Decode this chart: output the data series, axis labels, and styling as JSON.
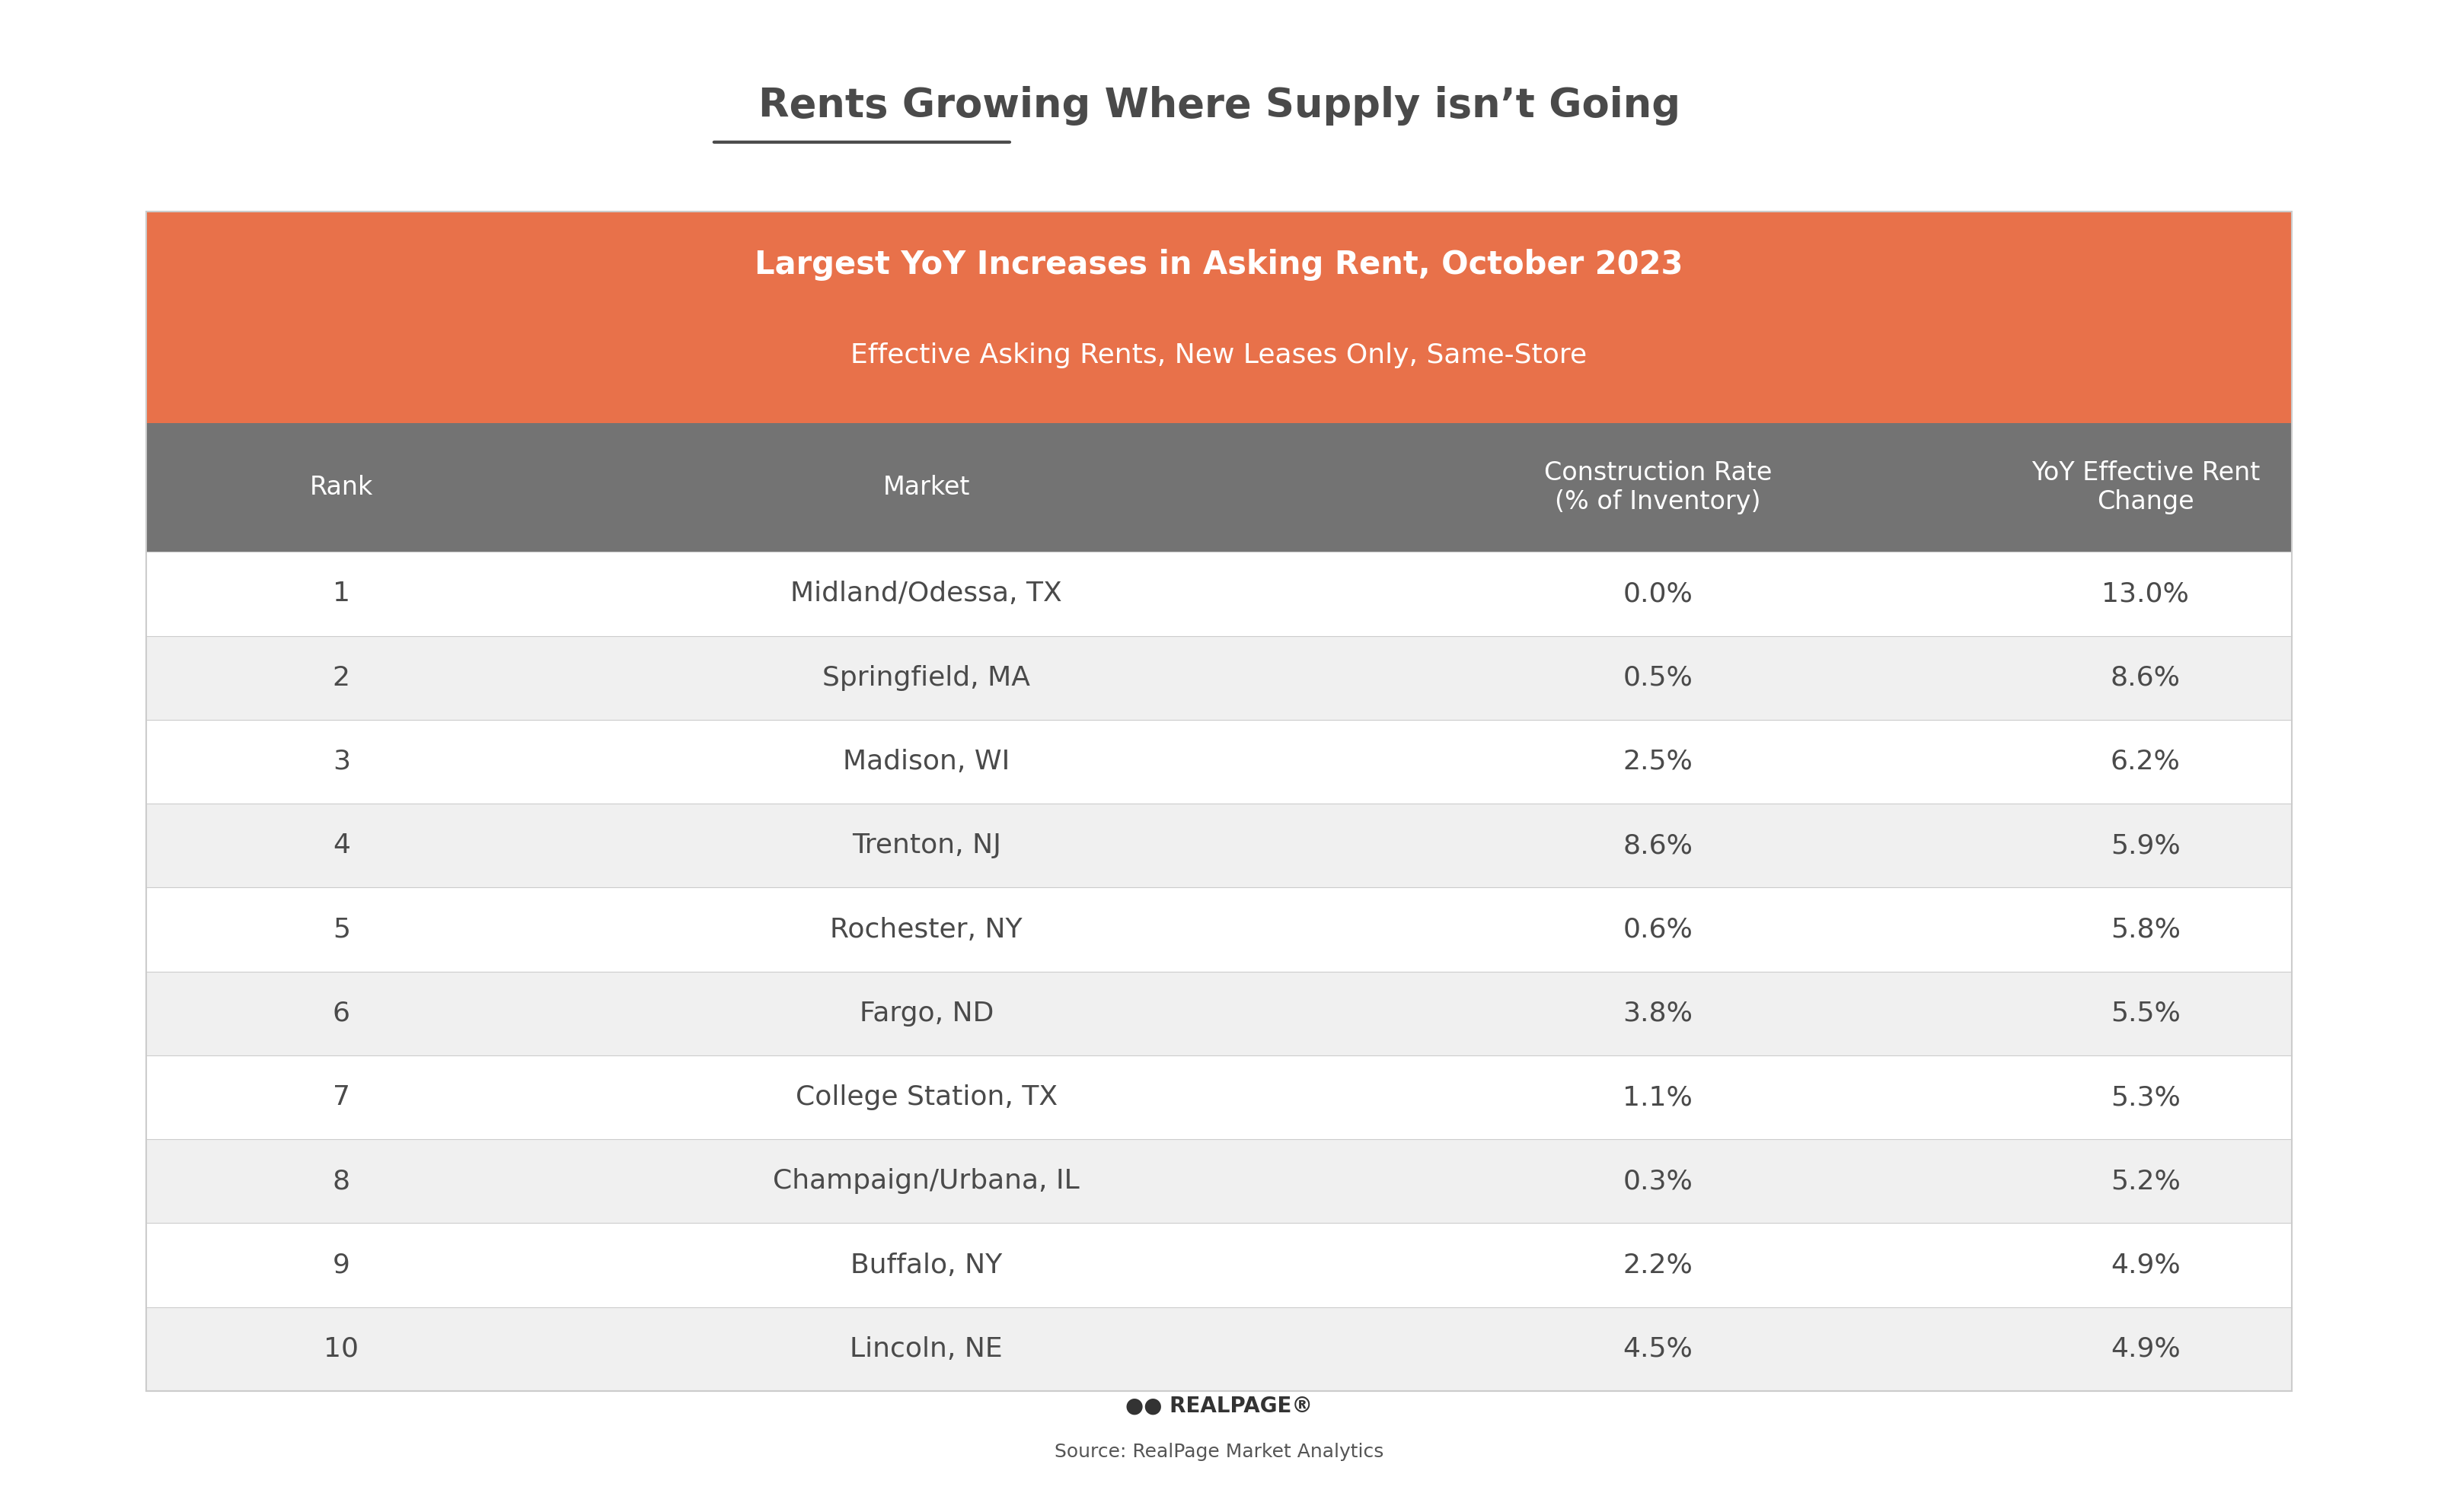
{
  "title": "Rents Growing Where Supply isn’t Going",
  "title_underline_word": "Growing",
  "header_title": "Largest YoY Increases in Asking Rent, October 2023",
  "header_subtitle": "Effective Asking Rents, New Leases Only, Same-Store",
  "col_headers": [
    "Rank",
    "Market",
    "Construction Rate\n(% of Inventory)",
    "YoY Effective Rent\nChange"
  ],
  "rows": [
    [
      1,
      "Midland/Odessa, TX",
      "0.0%",
      "13.0%"
    ],
    [
      2,
      "Springfield, MA",
      "0.5%",
      "8.6%"
    ],
    [
      3,
      "Madison, WI",
      "2.5%",
      "6.2%"
    ],
    [
      4,
      "Trenton, NJ",
      "8.6%",
      "5.9%"
    ],
    [
      5,
      "Rochester, NY",
      "0.6%",
      "5.8%"
    ],
    [
      6,
      "Fargo, ND",
      "3.8%",
      "5.5%"
    ],
    [
      7,
      "College Station, TX",
      "1.1%",
      "5.3%"
    ],
    [
      8,
      "Champaign/Urbana, IL",
      "0.3%",
      "5.2%"
    ],
    [
      9,
      "Buffalo, NY",
      "2.2%",
      "4.9%"
    ],
    [
      10,
      "Lincoln, NE",
      "4.5%",
      "4.9%"
    ]
  ],
  "orange_color": "#E8714A",
  "gray_header_color": "#737373",
  "white_color": "#FFFFFF",
  "dark_text_color": "#4A4A4A",
  "light_row_color": "#FFFFFF",
  "alt_row_color": "#F0F0F0",
  "source_text": "Source: RealPage Market Analytics",
  "logo_text": "•• REALPAGE®",
  "background_color": "#FFFFFF"
}
